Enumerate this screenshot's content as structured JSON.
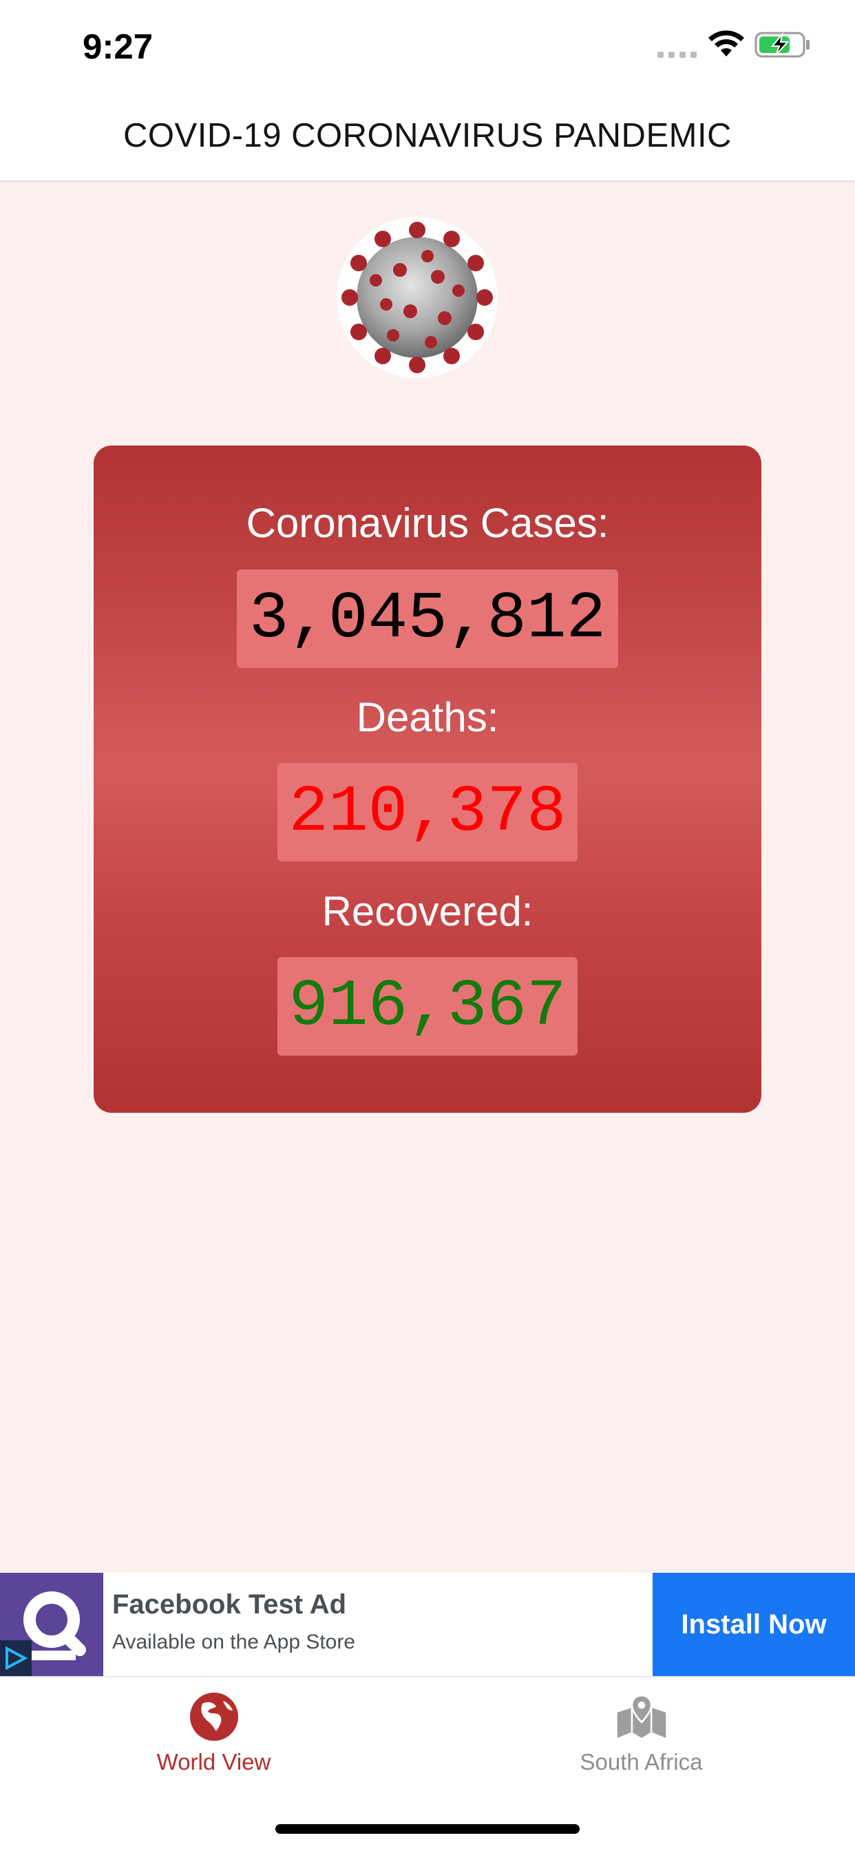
{
  "status_bar": {
    "time": "9:27",
    "icons": [
      "signal-icon",
      "wifi-icon",
      "battery-charging-icon"
    ]
  },
  "nav": {
    "title": "COVID-19 CORONAVIRUS PANDEMIC"
  },
  "hero": {
    "icon": "coronavirus-icon"
  },
  "stats": {
    "cases_label": "Coronavirus Cases:",
    "cases_value": "3,045,812",
    "deaths_label": "Deaths:",
    "deaths_value": "210,378",
    "recovered_label": "Recovered:",
    "recovered_value": "916,367",
    "colors": {
      "cases": "#000000",
      "deaths": "#ff0000",
      "recovered": "#137a0e",
      "card": "#c74a4b"
    }
  },
  "ad": {
    "title": "Facebook Test Ad",
    "subtitle": "Available on the App Store",
    "button_label": "Install Now",
    "button_color": "#1877f2"
  },
  "tabs": [
    {
      "label": "World View",
      "icon": "globe-icon",
      "active": true,
      "color": "#b52e2e"
    },
    {
      "label": "South Africa",
      "icon": "map-pin-icon",
      "active": false,
      "color": "#8e8e8e"
    }
  ]
}
